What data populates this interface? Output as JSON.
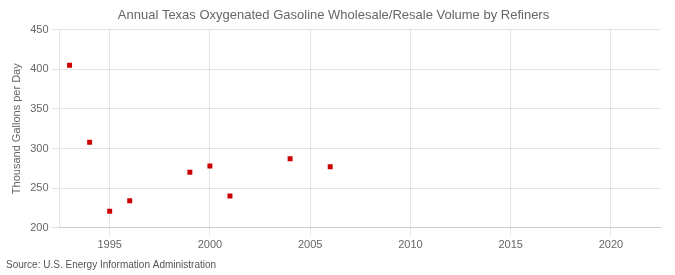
{
  "chart_data": {
    "type": "scatter",
    "title": "Annual Texas Oxygenated Gasoline Wholesale/Resale Volume by Refiners",
    "ylabel": "Thousand Gallons per Day",
    "source": "Source: U.S. Energy Information Administration",
    "x": [
      1993,
      1994,
      1995,
      1996,
      1999,
      2000,
      2001,
      2004,
      2006
    ],
    "values": [
      405,
      308,
      221,
      234,
      270,
      278,
      240,
      287,
      277
    ],
    "color": "#cc0000",
    "marker": "square",
    "xlim": [
      1992.5,
      2022.5
    ],
    "ylim": [
      200,
      450
    ],
    "xticks": [
      1995,
      2000,
      2005,
      2010,
      2015,
      2020
    ],
    "yticks": [
      200,
      250,
      300,
      350,
      400,
      450
    ],
    "grid": true
  }
}
